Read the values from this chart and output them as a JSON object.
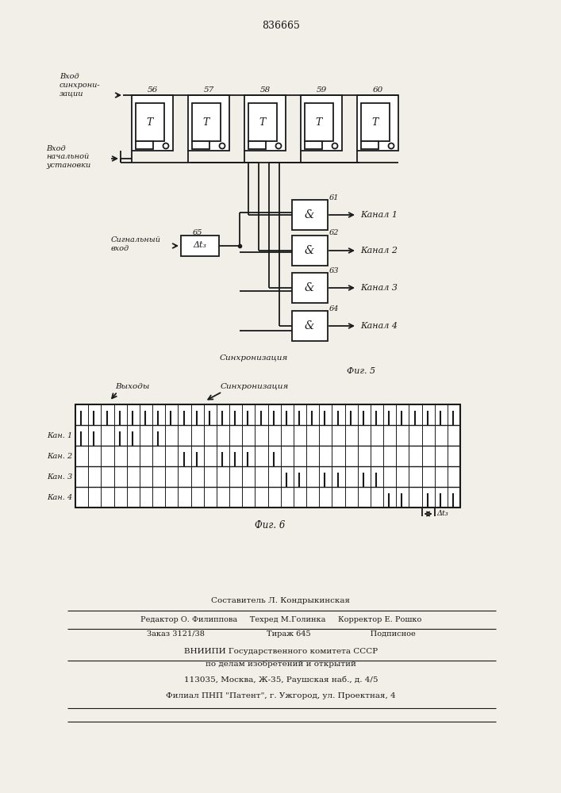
{
  "title": "836665",
  "fig5_label": "Фиг. 5",
  "fig6_label": "Фиг. 6",
  "bg_color": "#f2efe8",
  "line_color": "#1a1a1a",
  "text_color": "#1a1a1a",
  "footer_lines": [
    "Составитель Л. Кондрыкинская",
    "Редактор О. Филиппова     Техред М.Голинка     Корректор Е. Рошко",
    "Заказ 3121/38                         Тираж 645                        Подписное",
    "ВНИИПИ Государственного комитета СССР",
    "по делам изобретений и открытий",
    "113035, Москва, Ж-35, Раушская наб., д. 4/5",
    "Филиал ПНП \"Патент\", г. Ужгород, ул. Проектная, 4"
  ],
  "trigger_labels": [
    "56",
    "57",
    "58",
    "59",
    "60"
  ],
  "and_gate_labels": [
    "61",
    "62",
    "63",
    "64"
  ],
  "delay_label": "65",
  "channel_labels": [
    "Канал 1",
    "Канал 2",
    "Канал 3",
    "Канал 4"
  ],
  "waveform_chan_labels": [
    "Кан. 1",
    "Кан. 2",
    "Кан. 3",
    "Кан. 4"
  ],
  "sync_input_label": "Вход\nсинхрони-\nзации",
  "init_input_label": "Вход\nначальной\nустановки",
  "signal_input_label": "Сигнальный\nвход",
  "sync_label": "Синхронизация",
  "outputs_label": "Выходы",
  "delta_t_label": "Δt₃",
  "T_label": "T",
  "ch1_pattern": [
    1,
    1,
    0,
    1,
    1,
    0,
    1,
    0,
    0,
    0,
    0,
    0,
    0,
    0,
    0,
    0,
    0,
    0,
    0,
    0,
    0,
    0,
    0,
    0,
    0,
    0,
    0,
    0,
    0,
    0
  ],
  "ch2_pattern": [
    0,
    0,
    0,
    0,
    0,
    0,
    0,
    0,
    1,
    1,
    0,
    1,
    1,
    1,
    0,
    1,
    0,
    0,
    0,
    0,
    0,
    0,
    0,
    0,
    0,
    0,
    0,
    0,
    0,
    0
  ],
  "ch3_pattern": [
    0,
    0,
    0,
    0,
    0,
    0,
    0,
    0,
    0,
    0,
    0,
    0,
    0,
    0,
    0,
    0,
    1,
    1,
    0,
    1,
    1,
    0,
    1,
    1,
    0,
    0,
    0,
    0,
    0,
    0
  ],
  "ch4_pattern": [
    0,
    0,
    0,
    0,
    0,
    0,
    0,
    0,
    0,
    0,
    0,
    0,
    0,
    0,
    0,
    0,
    0,
    0,
    0,
    0,
    0,
    0,
    0,
    0,
    1,
    1,
    0,
    1,
    1,
    1
  ]
}
